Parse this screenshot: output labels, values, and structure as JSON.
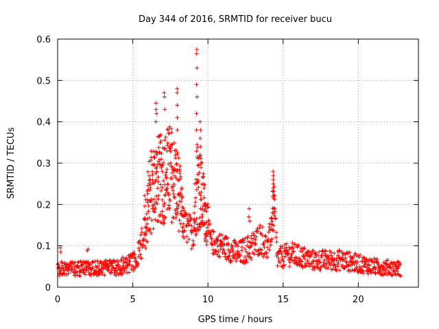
{
  "chart_data": {
    "type": "scatter",
    "title": "Day 344 of 2016, SRMTID for receiver bucu",
    "xlabel": "GPS time / hours",
    "ylabel": "SRMTID / TECUs",
    "xlim": [
      0,
      24
    ],
    "ylim": [
      0,
      0.6
    ],
    "grid": true,
    "marker": "+",
    "color": "#ff0000",
    "xticks": [
      0,
      5,
      10,
      15,
      20
    ],
    "xtick_labels": [
      "0",
      "5",
      "10",
      "15",
      "20"
    ],
    "yticks": [
      0,
      0.1,
      0.2,
      0.3,
      0.4,
      0.5,
      0.6
    ],
    "ytick_labels": [
      "0",
      "0.1",
      "0.2",
      "0.3",
      "0.4",
      "0.5",
      "0.6"
    ],
    "series": [
      {
        "name": "SRMTID",
        "x_range": [
          0,
          22.8
        ],
        "x_step": 0.02,
        "envelope": [
          {
            "x": 0.0,
            "y": 0.045,
            "spread": 0.018
          },
          {
            "x": 2.0,
            "y": 0.045,
            "spread": 0.018
          },
          {
            "x": 4.0,
            "y": 0.048,
            "spread": 0.02
          },
          {
            "x": 5.0,
            "y": 0.06,
            "spread": 0.022
          },
          {
            "x": 5.5,
            "y": 0.09,
            "spread": 0.03
          },
          {
            "x": 6.0,
            "y": 0.2,
            "spread": 0.1
          },
          {
            "x": 6.5,
            "y": 0.26,
            "spread": 0.11
          },
          {
            "x": 7.0,
            "y": 0.26,
            "spread": 0.11
          },
          {
            "x": 7.5,
            "y": 0.28,
            "spread": 0.12
          },
          {
            "x": 8.0,
            "y": 0.24,
            "spread": 0.1
          },
          {
            "x": 8.4,
            "y": 0.15,
            "spread": 0.04
          },
          {
            "x": 9.0,
            "y": 0.13,
            "spread": 0.04
          },
          {
            "x": 9.3,
            "y": 0.26,
            "spread": 0.12
          },
          {
            "x": 9.7,
            "y": 0.2,
            "spread": 0.08
          },
          {
            "x": 10.2,
            "y": 0.11,
            "spread": 0.03
          },
          {
            "x": 11.0,
            "y": 0.1,
            "spread": 0.03
          },
          {
            "x": 12.0,
            "y": 0.08,
            "spread": 0.03
          },
          {
            "x": 13.0,
            "y": 0.1,
            "spread": 0.035
          },
          {
            "x": 13.5,
            "y": 0.12,
            "spread": 0.04
          },
          {
            "x": 14.0,
            "y": 0.09,
            "spread": 0.03
          },
          {
            "x": 14.4,
            "y": 0.2,
            "spread": 0.06
          },
          {
            "x": 14.6,
            "y": 0.07,
            "spread": 0.025
          },
          {
            "x": 15.5,
            "y": 0.08,
            "spread": 0.03
          },
          {
            "x": 17.0,
            "y": 0.065,
            "spread": 0.025
          },
          {
            "x": 19.0,
            "y": 0.065,
            "spread": 0.025
          },
          {
            "x": 21.0,
            "y": 0.05,
            "spread": 0.02
          },
          {
            "x": 22.8,
            "y": 0.045,
            "spread": 0.018
          }
        ],
        "peaks": [
          {
            "x": 9.25,
            "values": [
              0.575,
              0.565,
              0.53,
              0.49,
              0.46,
              0.42,
              0.38,
              0.345
            ]
          },
          {
            "x": 9.5,
            "values": [
              0.4,
              0.38,
              0.36,
              0.34,
              0.32,
              0.3
            ]
          },
          {
            "x": 7.95,
            "values": [
              0.48,
              0.47,
              0.44,
              0.41,
              0.38
            ]
          },
          {
            "x": 7.1,
            "values": [
              0.47,
              0.46,
              0.43
            ]
          },
          {
            "x": 6.55,
            "values": [
              0.445,
              0.43,
              0.42,
              0.4
            ]
          },
          {
            "x": 14.35,
            "values": [
              0.28,
              0.27,
              0.26,
              0.25,
              0.24,
              0.22
            ]
          },
          {
            "x": 12.75,
            "values": [
              0.19,
              0.17,
              0.16
            ]
          },
          {
            "x": 0.2,
            "values": [
              0.095,
              0.085
            ]
          },
          {
            "x": 2.0,
            "values": [
              0.092,
              0.088
            ]
          }
        ]
      }
    ]
  }
}
